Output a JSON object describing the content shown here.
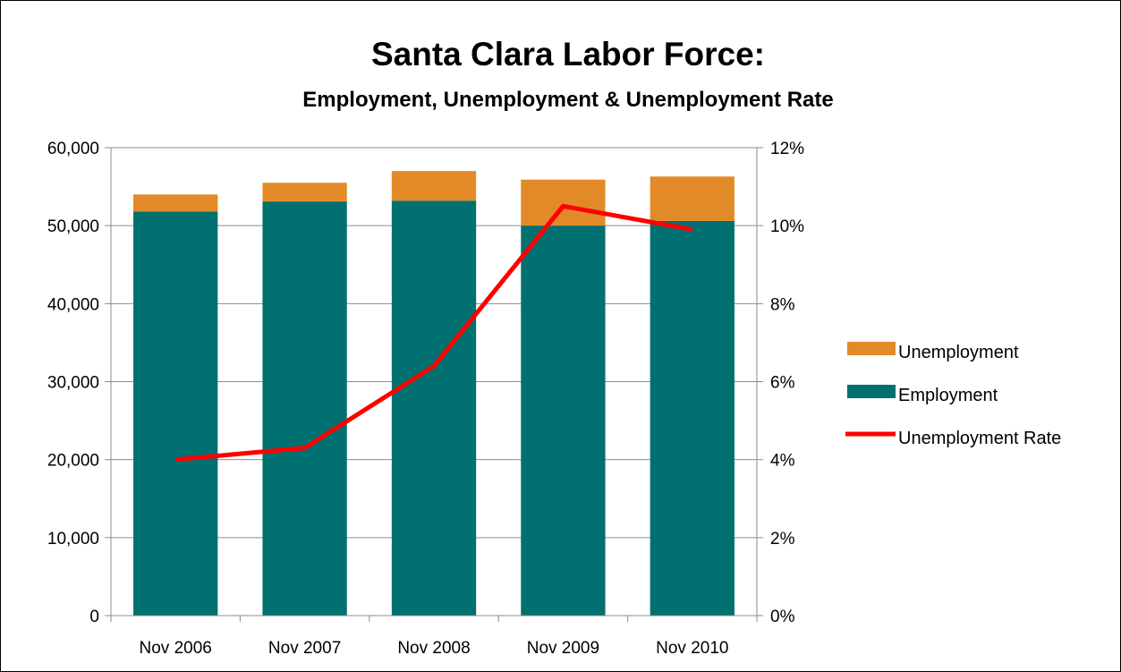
{
  "chart_data": {
    "type": "bar",
    "stacked": true,
    "title": "Santa Clara Labor Force:",
    "subtitle": "Employment, Unemployment & Unemployment Rate",
    "categories": [
      "Nov 2006",
      "Nov 2007",
      "Nov 2008",
      "Nov 2009",
      "Nov 2010"
    ],
    "series": [
      {
        "name": "Employment",
        "type": "bar",
        "axis": "left",
        "color": "#007070",
        "values": [
          51800,
          53100,
          53200,
          50000,
          50600
        ]
      },
      {
        "name": "Unemployment",
        "type": "bar",
        "axis": "left",
        "color": "#E38A28",
        "values": [
          2200,
          2400,
          3800,
          5900,
          5700
        ]
      },
      {
        "name": "Unemployment Rate",
        "type": "line",
        "axis": "right",
        "color": "#FF0000",
        "values": [
          4.0,
          4.3,
          6.4,
          10.5,
          9.9
        ]
      }
    ],
    "y_left": {
      "min": 0,
      "max": 60000,
      "ticks": [
        "0",
        "10,000",
        "20,000",
        "30,000",
        "40,000",
        "50,000",
        "60,000"
      ]
    },
    "y_right": {
      "min": 0,
      "max": 12,
      "ticks": [
        "0%",
        "2%",
        "4%",
        "6%",
        "8%",
        "10%",
        "12%"
      ]
    },
    "grid": true,
    "legend": {
      "position": "right",
      "items": [
        "Unemployment",
        "Employment",
        "Unemployment Rate"
      ]
    }
  }
}
